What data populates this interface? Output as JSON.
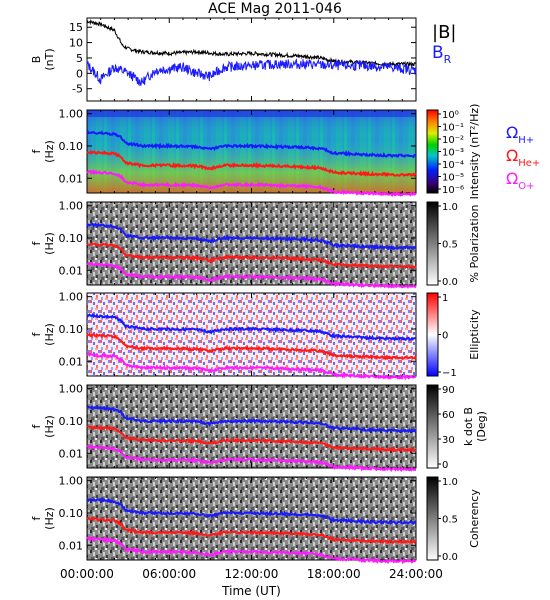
{
  "figure_title": "ACE Mag 2011-046",
  "xlabel": "Time (UT)",
  "colors": {
    "B_total": "#000000",
    "B_R": "#1a1aff",
    "H_plus": "#1a1aff",
    "He_plus": "#ff1a1a",
    "O_plus": "#ff1aff"
  },
  "chart_data": [
    {
      "type": "line",
      "id": "B",
      "ylabel": "B (nT)",
      "ylabel_line1": "B",
      "ylabel_line2": "(nT)",
      "y_ticks": [
        "15",
        "10",
        "5",
        "0",
        "-5"
      ],
      "ylim": [
        -9,
        18
      ],
      "xlim": [
        0,
        24
      ],
      "legend": [
        {
          "label": "|B|",
          "color": "#000000"
        },
        {
          "label": "B",
          "sub": "R",
          "color": "#1a1aff"
        }
      ],
      "series": [
        {
          "name": "|B|",
          "x": [
            0,
            1,
            2,
            2.6,
            3,
            4,
            6,
            8,
            10,
            12,
            14,
            16,
            17,
            18,
            20,
            22,
            24
          ],
          "y": [
            17,
            16,
            14,
            9,
            8,
            7,
            6.5,
            7,
            6.2,
            6.5,
            6,
            5.5,
            5,
            4,
            3.5,
            3,
            3
          ]
        },
        {
          "name": "B_R",
          "x": [
            0,
            1,
            2,
            3,
            4,
            5,
            6,
            7,
            8,
            9,
            10,
            12,
            14,
            16,
            18,
            20,
            22,
            24
          ],
          "y": [
            3,
            -2,
            2,
            0,
            -3,
            1,
            1.5,
            2,
            0,
            -1,
            2,
            2.5,
            3,
            3,
            2.5,
            2.5,
            2,
            1
          ]
        }
      ]
    },
    {
      "type": "heatmap",
      "id": "intensity",
      "ylabel_line1": "f",
      "ylabel_line2": "(Hz)",
      "y_ticks": [
        "1.00",
        "0.10",
        "0.01"
      ],
      "colorbar_ticks": [
        "10⁰",
        "10⁻¹",
        "10⁻²",
        "10⁻³",
        "10⁻⁴",
        "10⁻⁵",
        "10⁻⁶"
      ],
      "colorbar_label": "Intensity (nT²/Hz)",
      "legend": [
        {
          "label": "Ω",
          "sub": "H+",
          "color": "#1a1aff"
        },
        {
          "label": "Ω",
          "sub": "He+",
          "color": "#ff1a1a"
        },
        {
          "label": "Ω",
          "sub": "O+",
          "color": "#ff1aff"
        }
      ]
    },
    {
      "type": "heatmap",
      "id": "polarization",
      "ylabel_line1": "f",
      "ylabel_line2": "(Hz)",
      "y_ticks": [
        "1.00",
        "0.10",
        "0.01"
      ],
      "colorbar_ticks": [
        "1.0",
        "0.5",
        "0.0"
      ],
      "colorbar_label": "% Polarization"
    },
    {
      "type": "heatmap",
      "id": "ellipticity",
      "ylabel_line1": "f",
      "ylabel_line2": "(Hz)",
      "y_ticks": [
        "1.00",
        "0.10",
        "0.01"
      ],
      "colorbar_ticks": [
        "1",
        "0",
        "−1"
      ],
      "colorbar_label": "Ellipticity"
    },
    {
      "type": "heatmap",
      "id": "kdotb",
      "ylabel_line1": "f",
      "ylabel_line2": "(Hz)",
      "y_ticks": [
        "1.00",
        "0.10",
        "0.01"
      ],
      "colorbar_ticks": [
        "90",
        "60",
        "30",
        "0"
      ],
      "colorbar_label_line1": "k dot B",
      "colorbar_label_line2": "(Deg)"
    },
    {
      "type": "heatmap",
      "id": "coherency",
      "ylabel_line1": "f",
      "ylabel_line2": "(Hz)",
      "y_ticks": [
        "1.00",
        "0.10",
        "0.01"
      ],
      "colorbar_ticks": [
        "1.0",
        "0.5",
        "0.0"
      ],
      "colorbar_label": "Coherency"
    }
  ],
  "x_ticks": [
    "00:00:00",
    "06:00:00",
    "12:00:00",
    "18:00:00",
    "24:00:00"
  ],
  "gyro_lines": {
    "x": [
      0,
      1,
      2,
      2.5,
      2.8,
      3.5,
      4,
      6,
      8,
      9,
      10,
      12,
      14,
      16,
      17,
      18,
      20,
      22,
      24
    ],
    "H_plus_hz": [
      0.26,
      0.25,
      0.23,
      0.18,
      0.12,
      0.11,
      0.1,
      0.1,
      0.095,
      0.08,
      0.1,
      0.1,
      0.095,
      0.09,
      0.085,
      0.06,
      0.055,
      0.05,
      0.05
    ],
    "He_plus_hz": [
      0.065,
      0.062,
      0.058,
      0.045,
      0.03,
      0.027,
      0.025,
      0.025,
      0.024,
      0.02,
      0.025,
      0.025,
      0.024,
      0.022,
      0.021,
      0.015,
      0.014,
      0.013,
      0.013
    ],
    "O_plus_hz": [
      0.016,
      0.015,
      0.014,
      0.011,
      0.0075,
      0.007,
      0.0063,
      0.0063,
      0.006,
      0.005,
      0.0063,
      0.0063,
      0.006,
      0.0056,
      0.0053,
      0.0038,
      0.0035,
      0.0032,
      0.0032
    ]
  }
}
